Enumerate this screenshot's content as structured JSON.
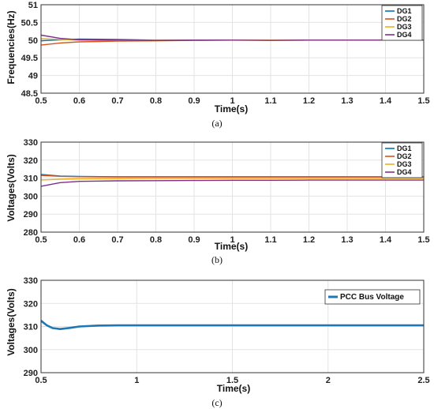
{
  "colors": {
    "DG1": "#0072BD",
    "DG2": "#D95319",
    "DG3": "#EDB120",
    "DG4": "#7E2F8E",
    "PCC": "#1F77B4"
  },
  "chart_data": [
    {
      "type": "line",
      "caption": "(a)",
      "xlabel": "Time(s)",
      "ylabel": "Frequencies(Hz)",
      "xlim": [
        0.5,
        1.5
      ],
      "ylim": [
        48.5,
        51
      ],
      "xticks": [
        "0.5",
        "0.6",
        "0.7",
        "0.8",
        "0.9",
        "1",
        "1.1",
        "1.2",
        "1.3",
        "1.4",
        "1.5"
      ],
      "yticks": [
        "48.5",
        "49",
        "49.5",
        "50",
        "50.5",
        "51"
      ],
      "grid": true,
      "legend_position": "top-right",
      "series": [
        {
          "name": "DG1",
          "x": [
            0.5,
            0.55,
            0.6,
            0.7,
            0.8,
            0.9,
            1.0,
            1.1,
            1.2,
            1.3,
            1.4,
            1.5
          ],
          "y": [
            49.98,
            50.01,
            50.03,
            50.02,
            50.0,
            50.0,
            50.0,
            50.0,
            50.0,
            50.0,
            50.0,
            50.0
          ]
        },
        {
          "name": "DG2",
          "x": [
            0.5,
            0.55,
            0.6,
            0.7,
            0.8,
            0.9,
            1.0,
            1.1,
            1.2,
            1.3,
            1.4,
            1.5
          ],
          "y": [
            49.86,
            49.92,
            49.95,
            49.97,
            49.98,
            49.99,
            50.0,
            50.0,
            50.0,
            50.0,
            50.0,
            50.0
          ]
        },
        {
          "name": "DG3",
          "x": [
            0.5,
            0.55,
            0.6,
            0.7,
            0.8,
            0.9,
            1.0,
            1.1,
            1.2,
            1.3,
            1.4,
            1.5
          ],
          "y": [
            50.04,
            50.02,
            50.0,
            49.99,
            50.0,
            50.0,
            50.0,
            50.0,
            50.0,
            50.0,
            50.0,
            50.0
          ]
        },
        {
          "name": "DG4",
          "x": [
            0.5,
            0.55,
            0.6,
            0.7,
            0.8,
            0.9,
            1.0,
            1.1,
            1.2,
            1.3,
            1.4,
            1.5
          ],
          "y": [
            50.14,
            50.05,
            50.01,
            50.0,
            49.99,
            50.0,
            50.0,
            49.99,
            50.0,
            50.0,
            50.0,
            50.0
          ]
        }
      ]
    },
    {
      "type": "line",
      "caption": "(b)",
      "xlabel": "Time(s)",
      "ylabel": "Voltages(Volts)",
      "xlim": [
        0.5,
        1.5
      ],
      "ylim": [
        280,
        330
      ],
      "xticks": [
        "0.5",
        "0.6",
        "0.7",
        "0.8",
        "0.9",
        "1",
        "1.1",
        "1.2",
        "1.3",
        "1.4",
        "1.5"
      ],
      "yticks": [
        "280",
        "290",
        "300",
        "310",
        "320",
        "330"
      ],
      "grid": true,
      "legend_position": "top-right",
      "series": [
        {
          "name": "DG1",
          "x": [
            0.5,
            0.55,
            0.6,
            0.7,
            0.8,
            0.9,
            1.0,
            1.1,
            1.2,
            1.3,
            1.4,
            1.5
          ],
          "y": [
            312.0,
            311.2,
            310.9,
            310.8,
            310.8,
            310.8,
            310.8,
            310.8,
            310.8,
            310.8,
            310.8,
            310.8
          ]
        },
        {
          "name": "DG2",
          "x": [
            0.5,
            0.55,
            0.6,
            0.7,
            0.8,
            0.9,
            1.0,
            1.1,
            1.2,
            1.3,
            1.4,
            1.5
          ],
          "y": [
            311.5,
            311.0,
            310.8,
            310.6,
            310.6,
            310.6,
            310.6,
            310.6,
            310.6,
            310.6,
            310.6,
            310.6
          ]
        },
        {
          "name": "DG3",
          "x": [
            0.5,
            0.55,
            0.6,
            0.7,
            0.8,
            0.9,
            1.0,
            1.1,
            1.2,
            1.3,
            1.4,
            1.5
          ],
          "y": [
            309.0,
            309.4,
            309.6,
            309.7,
            309.8,
            309.8,
            309.8,
            309.8,
            309.8,
            309.8,
            309.8,
            309.8
          ]
        },
        {
          "name": "DG4",
          "x": [
            0.5,
            0.55,
            0.6,
            0.7,
            0.8,
            0.9,
            1.0,
            1.1,
            1.2,
            1.3,
            1.4,
            1.5
          ],
          "y": [
            305.5,
            307.5,
            308.2,
            308.5,
            308.6,
            308.7,
            308.8,
            308.8,
            308.9,
            308.9,
            308.9,
            308.9
          ]
        }
      ]
    },
    {
      "type": "line",
      "caption": "(c)",
      "xlabel": "Time(s)",
      "ylabel": "Voltages(Volts)",
      "xlim": [
        0.5,
        2.5
      ],
      "ylim": [
        290,
        330
      ],
      "xticks": [
        "0.5",
        "1",
        "1.5",
        "2",
        "2.5"
      ],
      "yticks": [
        "290",
        "300",
        "310",
        "320",
        "330"
      ],
      "grid": true,
      "legend_position": "top-right",
      "series": [
        {
          "name": "PCC Bus Voltage",
          "x": [
            0.5,
            0.53,
            0.56,
            0.6,
            0.65,
            0.7,
            0.8,
            0.9,
            1.0,
            1.25,
            1.5,
            1.75,
            2.0,
            2.25,
            2.5
          ],
          "y": [
            312.5,
            310.5,
            309.3,
            308.9,
            309.4,
            310.0,
            310.4,
            310.5,
            310.5,
            310.5,
            310.5,
            310.5,
            310.5,
            310.5,
            310.5
          ]
        }
      ]
    }
  ]
}
